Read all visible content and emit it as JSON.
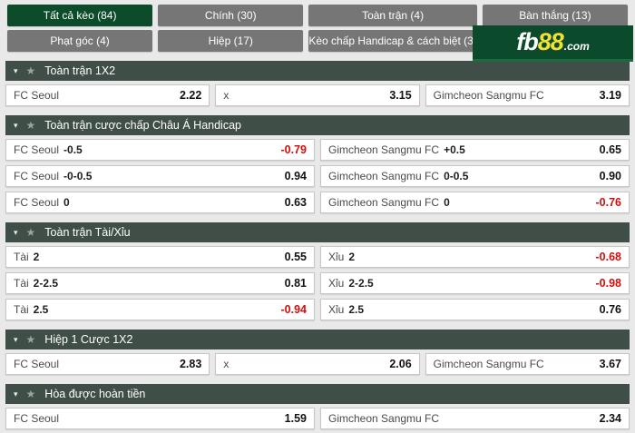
{
  "brand": {
    "fb": "fb",
    "eight_eight": "88",
    "dotcom": ".com"
  },
  "colors": {
    "active_tab_green": "#0d4c2b",
    "tab_gray": "#767676",
    "section_header_green": "#3f4e46",
    "brand_bg_green": "#0b4a2b",
    "brand_yellow": "#f2e135",
    "negative_odds_red": "#d40d0d",
    "page_background": "#e9e9e9"
  },
  "tabs": [
    {
      "label": "Tất cả kèo (84)",
      "active": true
    },
    {
      "label": "Chính (30)",
      "active": false
    },
    {
      "label": "Toàn trận (4)",
      "active": false
    },
    {
      "label": "Bàn thắng (13)",
      "active": false
    },
    {
      "label": "Phạt góc (4)",
      "active": false
    },
    {
      "label": "Hiệp (17)",
      "active": false
    },
    {
      "label": "Kèo chấp Handicap & cách biệt (3)",
      "active": false
    }
  ],
  "sections": [
    {
      "title": "Toàn trận 1X2",
      "columns": 3,
      "rows": [
        [
          {
            "label": "FC Seoul",
            "line": "",
            "odds": "2.22",
            "neg": false
          },
          {
            "label": "x",
            "line": "",
            "odds": "3.15",
            "neg": false
          },
          {
            "label": "Gimcheon Sangmu FC",
            "line": "",
            "odds": "3.19",
            "neg": false
          }
        ]
      ]
    },
    {
      "title": "Toàn trận cược chấp Châu Á Handicap",
      "columns": 2,
      "rows": [
        [
          {
            "label": "FC Seoul",
            "line": "-0.5",
            "odds": "-0.79",
            "neg": true
          },
          {
            "label": "Gimcheon Sangmu FC",
            "line": "+0.5",
            "odds": "0.65",
            "neg": false
          }
        ],
        [
          {
            "label": "FC Seoul",
            "line": "-0-0.5",
            "odds": "0.94",
            "neg": false
          },
          {
            "label": "Gimcheon Sangmu FC",
            "line": "0-0.5",
            "odds": "0.90",
            "neg": false
          }
        ],
        [
          {
            "label": "FC Seoul",
            "line": "0",
            "odds": "0.63",
            "neg": false
          },
          {
            "label": "Gimcheon Sangmu FC",
            "line": "0",
            "odds": "-0.76",
            "neg": true
          }
        ]
      ]
    },
    {
      "title": "Toàn trận Tài/Xỉu",
      "columns": 2,
      "rows": [
        [
          {
            "label": "Tài",
            "line": "2",
            "odds": "0.55",
            "neg": false
          },
          {
            "label": "Xỉu",
            "line": "2",
            "odds": "-0.68",
            "neg": true
          }
        ],
        [
          {
            "label": "Tài",
            "line": "2-2.5",
            "odds": "0.81",
            "neg": false
          },
          {
            "label": "Xỉu",
            "line": "2-2.5",
            "odds": "-0.98",
            "neg": true
          }
        ],
        [
          {
            "label": "Tài",
            "line": "2.5",
            "odds": "-0.94",
            "neg": true
          },
          {
            "label": "Xỉu",
            "line": "2.5",
            "odds": "0.76",
            "neg": false
          }
        ]
      ]
    },
    {
      "title": "Hiệp 1 Cược 1X2",
      "columns": 3,
      "rows": [
        [
          {
            "label": "FC Seoul",
            "line": "",
            "odds": "2.83",
            "neg": false
          },
          {
            "label": "x",
            "line": "",
            "odds": "2.06",
            "neg": false
          },
          {
            "label": "Gimcheon Sangmu FC",
            "line": "",
            "odds": "3.67",
            "neg": false
          }
        ]
      ]
    },
    {
      "title": "Hòa được hoàn tiền",
      "columns": 2,
      "rows": [
        [
          {
            "label": "FC Seoul",
            "line": "",
            "odds": "1.59",
            "neg": false
          },
          {
            "label": "Gimcheon Sangmu FC",
            "line": "",
            "odds": "2.34",
            "neg": false
          }
        ]
      ]
    }
  ]
}
